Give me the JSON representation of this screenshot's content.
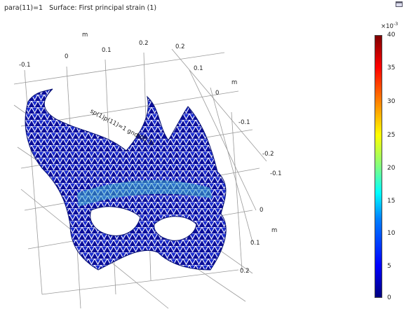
{
  "plot": {
    "title": "para(11)=1   Surface: First principal strain (1)",
    "axis_unit": "m",
    "x_ticks": [
      "-0.1",
      "0",
      "0.1",
      "0.2"
    ],
    "y_ticks": [
      "0.2",
      "0.1",
      "0",
      "-0.1",
      "-0.2"
    ],
    "z_ticks": [
      "0.2",
      "0.1",
      "0",
      "-0.1"
    ],
    "surface_label": "sp(1)p(11)=1 gnd(00 1)"
  },
  "colorbar": {
    "exponent_base": "×10",
    "exponent": "-3",
    "ticks": [
      "40",
      "35",
      "30",
      "25",
      "20",
      "15",
      "10",
      "5",
      "0"
    ],
    "colors": {
      "low": "#00007f",
      "mid": "#00ffff",
      "high": "#7f0000"
    }
  },
  "icons": {
    "corner": "window-icon"
  }
}
